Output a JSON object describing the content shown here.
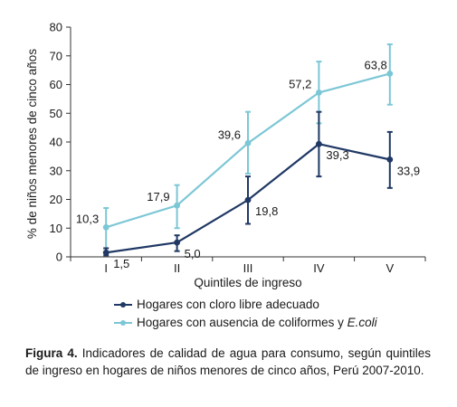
{
  "chart_data": {
    "type": "line",
    "categories": [
      "I",
      "II",
      "III",
      "IV",
      "V"
    ],
    "xlabel": "Quintiles de ingreso",
    "ylabel": "% de niños menores de cinco años",
    "ylim": [
      0,
      80
    ],
    "yticks": [
      0,
      10,
      20,
      30,
      40,
      50,
      60,
      70,
      80
    ],
    "grid": false,
    "legend_position": "bottom",
    "series": [
      {
        "name": "Hogares con cloro libre adecuado",
        "color": "#1f3864",
        "values": [
          1.5,
          5.0,
          19.8,
          39.3,
          33.9
        ],
        "labels": [
          "1,5",
          "5,0",
          "19,8",
          "39,3",
          "33,9"
        ],
        "error_low": [
          0.5,
          2.0,
          11.5,
          28.0,
          24.0
        ],
        "error_high": [
          3.0,
          7.5,
          28.0,
          50.5,
          43.5
        ]
      },
      {
        "name": "Hogares con ausencia de coliformes y E.coli",
        "color": "#7cc7d6",
        "values": [
          10.3,
          17.9,
          39.6,
          57.2,
          63.8
        ],
        "labels": [
          "10,3",
          "17,9",
          "39,6",
          "57,2",
          "63,8"
        ],
        "error_low": [
          3.0,
          10.0,
          29.0,
          46.5,
          53.0
        ],
        "error_high": [
          17.0,
          25.0,
          50.5,
          68.0,
          74.0
        ]
      }
    ]
  },
  "legend": {
    "item1": "Hogares con cloro libre adecuado",
    "item2_prefix": "Hogares con ausencia de coliformes y ",
    "item2_italic": "E.coli"
  },
  "caption": {
    "label": "Figura 4.",
    "text": " Indicadores de calidad de agua para consumo, según quintiles de ingreso en hogares de niños menores de cinco años, Perú 2007-2010."
  }
}
